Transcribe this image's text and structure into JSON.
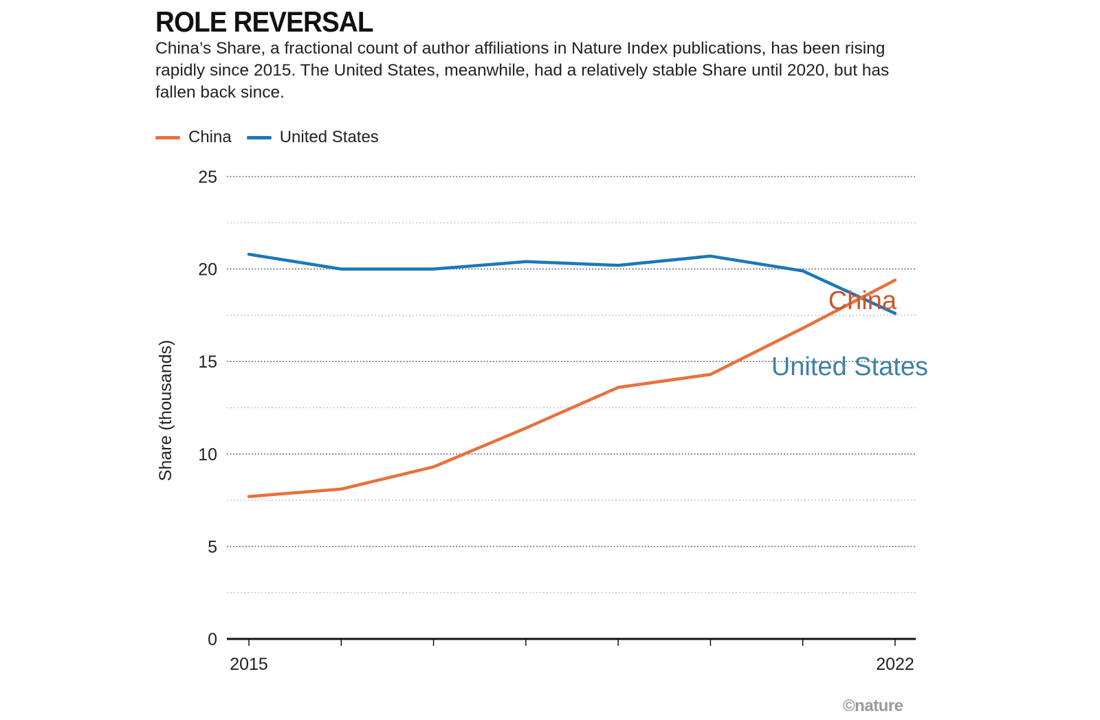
{
  "header": {
    "title": "ROLE REVERSAL",
    "subtitle": "China’s Share, a fractional count of author affiliations in Nature Index publications, has been rising rapidly since 2015. The United States, meanwhile, had a relatively stable Share until 2020, but has fallen back since."
  },
  "legend": {
    "items": [
      {
        "label": "China",
        "color": "#e8713c"
      },
      {
        "label": "United States",
        "color": "#1b78b8"
      }
    ]
  },
  "credit": "©nature",
  "chart_data": {
    "type": "line",
    "title": "ROLE REVERSAL",
    "ylabel": "Share (thousands)",
    "xlabel": "",
    "x": [
      2015,
      2016,
      2017,
      2018,
      2019,
      2020,
      2021,
      2022
    ],
    "x_tick_labels": [
      "2015",
      "",
      "",
      "",
      "",
      "",
      "",
      "2022"
    ],
    "ylim": [
      0,
      25
    ],
    "y_ticks": [
      0,
      5,
      10,
      15,
      20,
      25
    ],
    "grid": "dotted horizontal",
    "legend_placement": "top-left",
    "series": [
      {
        "name": "China",
        "color": "#e8713c",
        "label_color": "#c8562a",
        "values": [
          7.7,
          8.1,
          9.3,
          11.4,
          13.6,
          14.3,
          16.8,
          19.4
        ]
      },
      {
        "name": "United States",
        "color": "#1b78b8",
        "label_color": "#3d80a8",
        "values": [
          20.8,
          20.0,
          20.0,
          20.4,
          20.2,
          20.7,
          19.9,
          17.6
        ]
      }
    ],
    "annotations": [
      {
        "text": "China",
        "series": "China"
      },
      {
        "text": "United States",
        "series": "United States"
      }
    ]
  }
}
